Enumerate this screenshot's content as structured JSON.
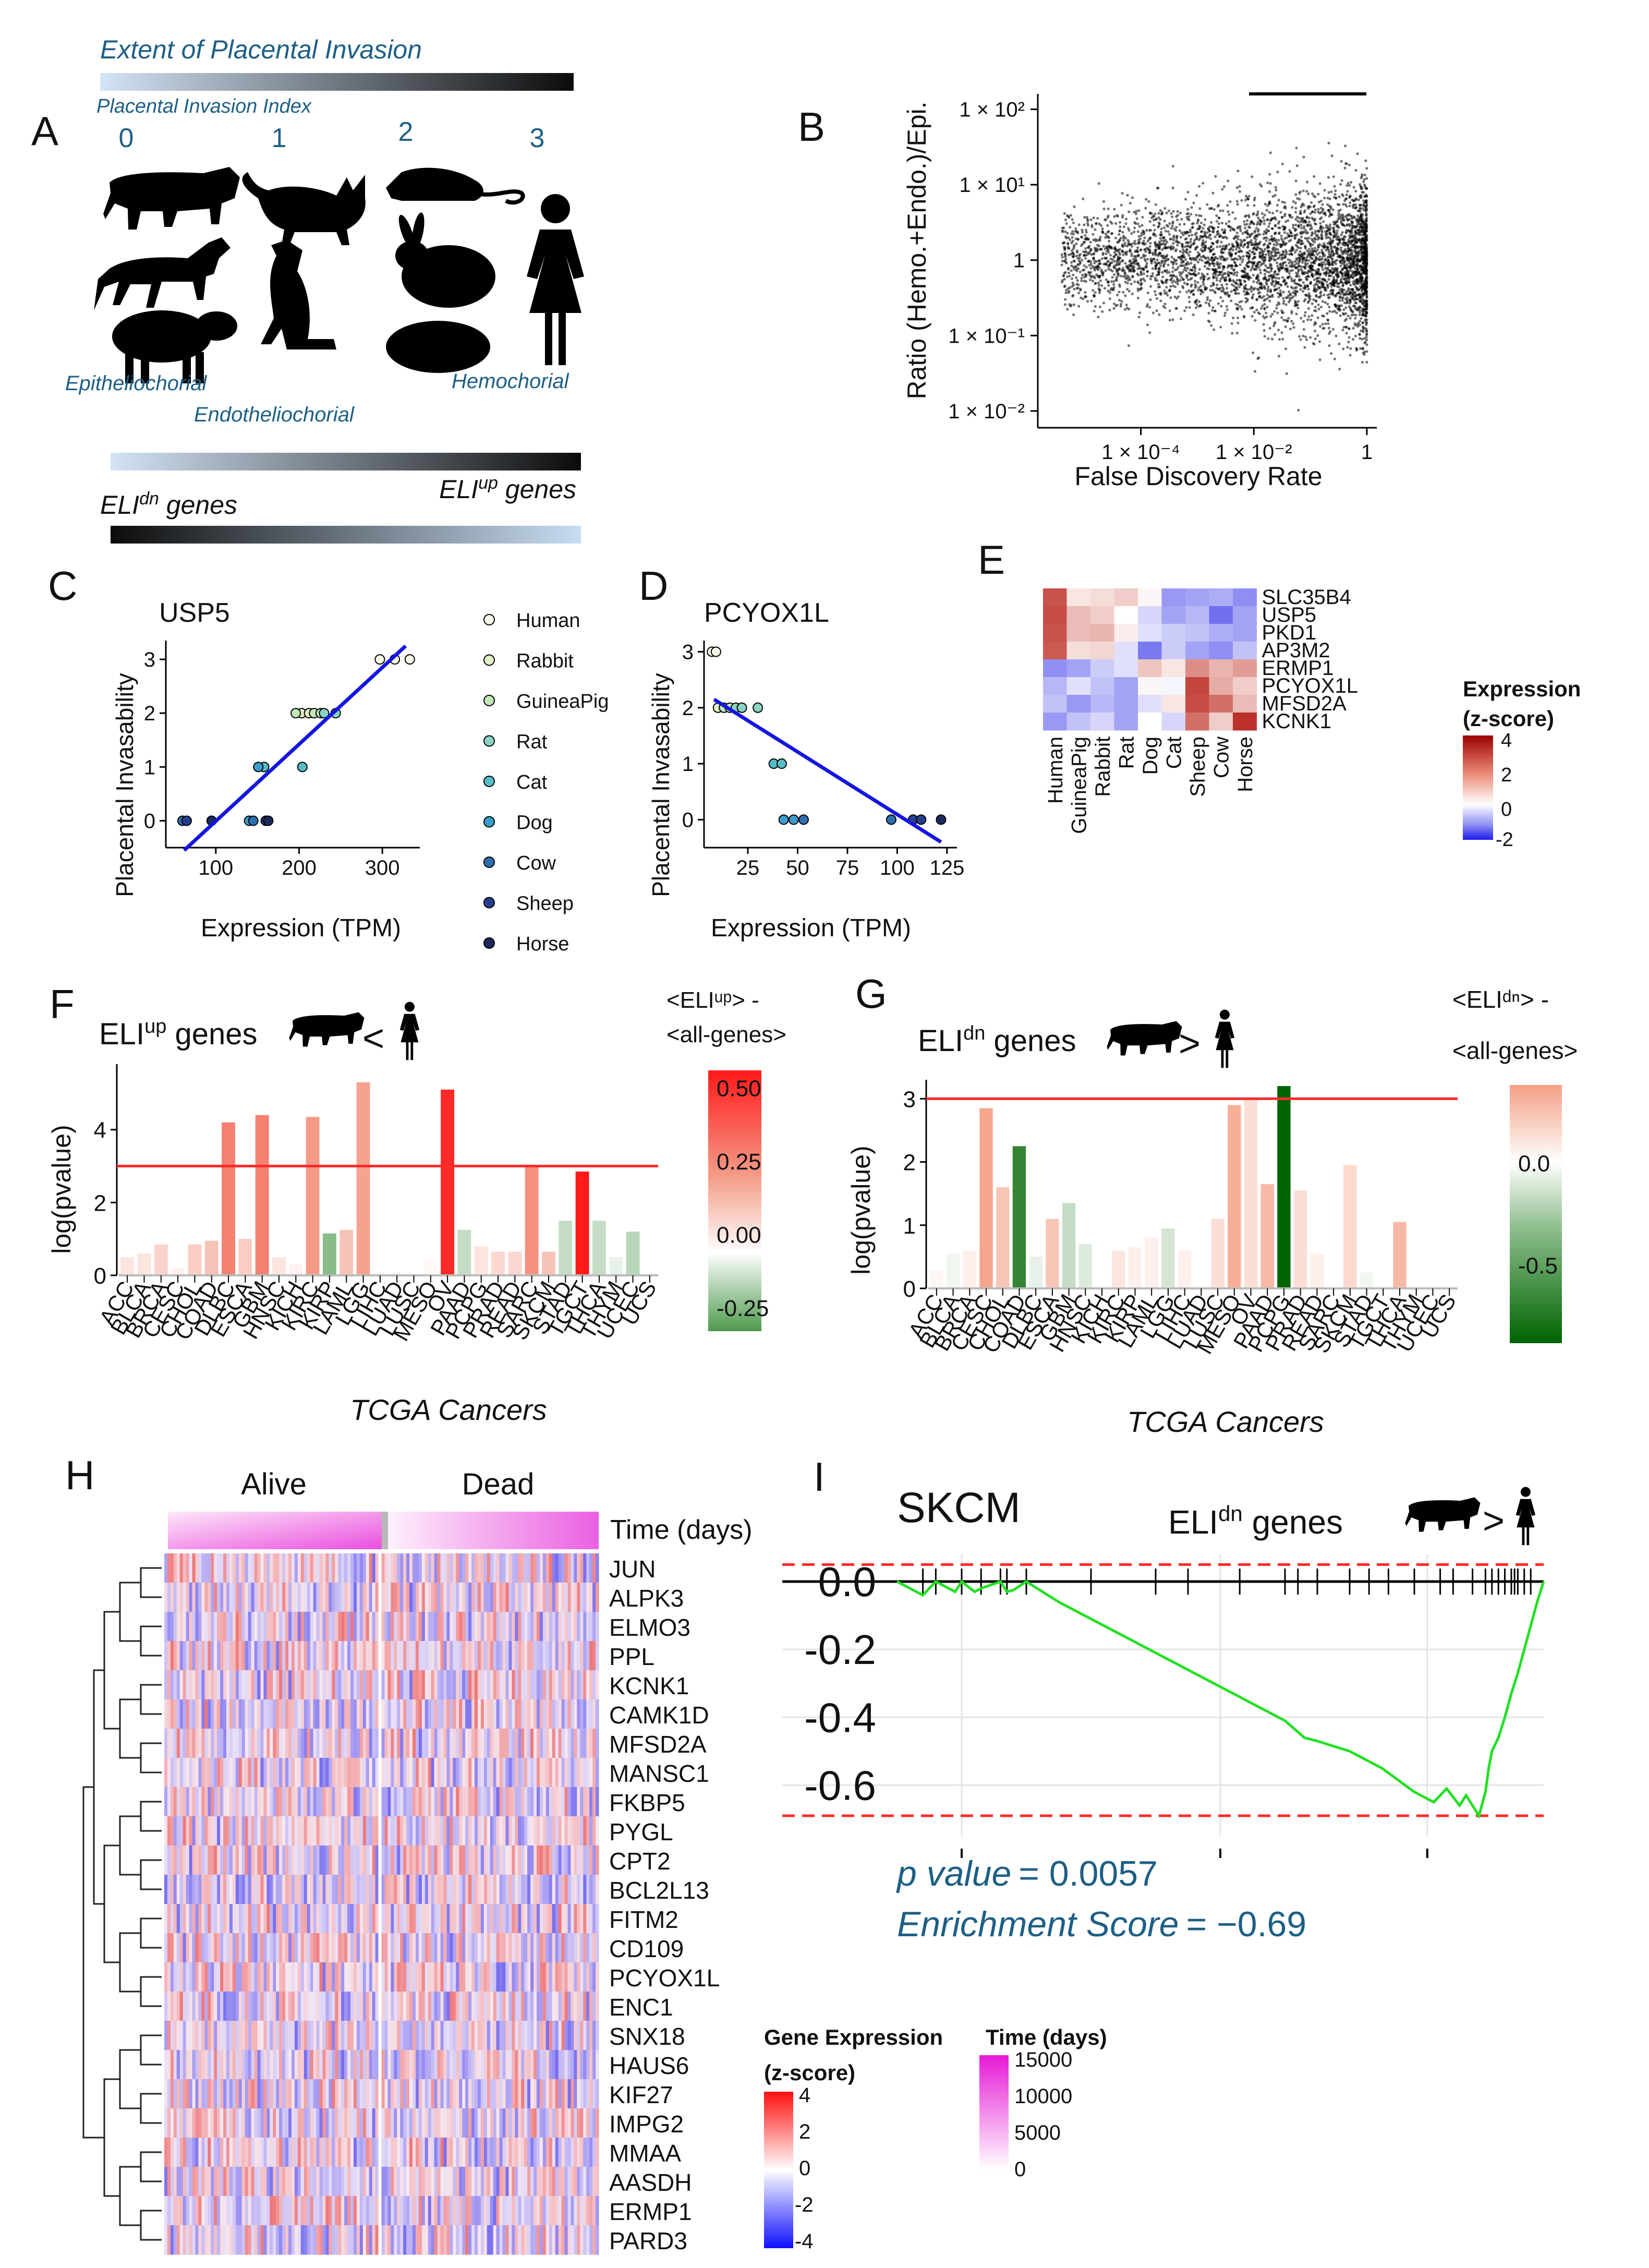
{
  "panelA": {
    "letter": "A",
    "extent_title": "Extent of Placental Invasion",
    "index_label": "Placental Invasion Index",
    "index_values": [
      "0",
      "1",
      "2",
      "3"
    ],
    "animals": [
      "cow",
      "horse",
      "sheep",
      "cat",
      "dog",
      "rat",
      "rabbit",
      "guinea-pig",
      "human"
    ],
    "type_labels": [
      "Epitheliochorial",
      "Endotheliochorial",
      "Hemochorial"
    ],
    "eli_up": "ELI",
    "eli_up_sup": "up",
    "eli_up_suffix": " genes",
    "eli_dn": "ELI",
    "eli_dn_sup": "dn",
    "eli_dn_suffix": " genes"
  },
  "chart_data": [
    {
      "panel": "B",
      "type": "scatter",
      "xlabel": "False Discovery Rate",
      "ylabel": "Ratio (Hemo.+Endo.)/Epi.",
      "xscale": "log",
      "yscale": "log",
      "xlim": [
        1.5e-06,
        1.5
      ],
      "ylim": [
        0.006,
        160
      ],
      "x_ticks": [
        "1 × 10⁻⁴",
        "1 × 10⁻²",
        "1"
      ],
      "y_ticks": [
        "1 × 10²",
        "1 × 10¹",
        "1",
        "1 × 10⁻¹",
        "1 × 10⁻²"
      ]
    },
    {
      "panel": "C",
      "type": "scatter",
      "title": "USP5",
      "xlabel": "Expression (TPM)",
      "ylabel": "Placental Invasability",
      "xlim": [
        40,
        345
      ],
      "ylim": [
        -0.5,
        3.35
      ],
      "x_ticks": [
        100,
        200,
        300
      ],
      "y_ticks": [
        0,
        1,
        2,
        3
      ],
      "points": [
        {
          "species": "Human",
          "x": 297,
          "y": 3
        },
        {
          "species": "Human",
          "x": 315,
          "y": 3
        },
        {
          "species": "Human",
          "x": 333,
          "y": 3
        },
        {
          "species": "Rabbit",
          "x": 203,
          "y": 2
        },
        {
          "species": "Rabbit",
          "x": 212,
          "y": 2
        },
        {
          "species": "GuineaPig",
          "x": 196,
          "y": 2
        },
        {
          "species": "GuineaPig",
          "x": 218,
          "y": 2
        },
        {
          "species": "GuineaPig",
          "x": 226,
          "y": 2
        },
        {
          "species": "Rat",
          "x": 230,
          "y": 2
        },
        {
          "species": "Rat",
          "x": 244,
          "y": 2
        },
        {
          "species": "Cat",
          "x": 158,
          "y": 1
        },
        {
          "species": "Cat",
          "x": 204,
          "y": 1
        },
        {
          "species": "Dog",
          "x": 151,
          "y": 1
        },
        {
          "species": "Dog",
          "x": 140,
          "y": 0
        },
        {
          "species": "Cow",
          "x": 60,
          "y": 0
        },
        {
          "species": "Cow",
          "x": 145,
          "y": 0
        },
        {
          "species": "Sheep",
          "x": 65,
          "y": 0
        },
        {
          "species": "Sheep",
          "x": 160,
          "y": 0
        },
        {
          "species": "Horse",
          "x": 95,
          "y": 0
        },
        {
          "species": "Horse",
          "x": 163,
          "y": 0
        }
      ],
      "fit": {
        "x0": 62,
        "y0": -0.55,
        "x1": 328,
        "y1": 3.25
      }
    },
    {
      "panel": "D",
      "type": "scatter",
      "title": "PCYOX1L",
      "xlabel": "Expression (TPM)",
      "ylabel": "Placental Invasability",
      "xlim": [
        3,
        130
      ],
      "ylim": [
        -0.5,
        3.2
      ],
      "x_ticks": [
        25,
        50,
        75,
        100,
        125
      ],
      "y_ticks": [
        0,
        1,
        2,
        3
      ],
      "points": [
        {
          "species": "Human",
          "x": 7,
          "y": 3
        },
        {
          "species": "Human",
          "x": 9,
          "y": 3
        },
        {
          "species": "Rabbit",
          "x": 10,
          "y": 2
        },
        {
          "species": "GuineaPig",
          "x": 13,
          "y": 2
        },
        {
          "species": "GuineaPig",
          "x": 16,
          "y": 2
        },
        {
          "species": "Rat",
          "x": 19,
          "y": 2
        },
        {
          "species": "Rat",
          "x": 22,
          "y": 2
        },
        {
          "species": "Rat",
          "x": 30,
          "y": 2
        },
        {
          "species": "Cat",
          "x": 38,
          "y": 1
        },
        {
          "species": "Cat",
          "x": 42,
          "y": 1
        },
        {
          "species": "Dog",
          "x": 43,
          "y": 0
        },
        {
          "species": "Dog",
          "x": 48,
          "y": 0
        },
        {
          "species": "Cow",
          "x": 53,
          "y": 0
        },
        {
          "species": "Cow",
          "x": 97,
          "y": 0
        },
        {
          "species": "Sheep",
          "x": 108,
          "y": 0
        },
        {
          "species": "Sheep",
          "x": 112,
          "y": 0
        },
        {
          "species": "Horse",
          "x": 122,
          "y": 0
        }
      ],
      "fit": {
        "x0": 8,
        "y0": 2.15,
        "x1": 122,
        "y1": -0.4
      }
    },
    {
      "panel": "E",
      "type": "heatmap",
      "legend_title": [
        "Expression",
        "(z-score)"
      ],
      "legend_ticks": [
        "4",
        "2",
        "0",
        "-2"
      ],
      "rows": [
        "SLC35B4",
        "USP5",
        "PKD1",
        "AP3M2",
        "ERMP1",
        "PCYOX1L",
        "MFSD2A",
        "KCNK1"
      ],
      "cols": [
        "Human",
        "GuineaPig",
        "Rabbit",
        "Rat",
        "Dog",
        "Cat",
        "Sheep",
        "Cow",
        "Horse"
      ],
      "values": [
        [
          2.2,
          0.3,
          0.4,
          0.6,
          0.1,
          -1.0,
          -0.9,
          -0.8,
          -1.1
        ],
        [
          2.3,
          0.8,
          0.6,
          0.0,
          -0.4,
          -0.9,
          -0.7,
          -1.4,
          -0.9
        ],
        [
          2.2,
          0.8,
          0.9,
          0.2,
          -0.3,
          -0.5,
          -0.6,
          -0.8,
          -0.9
        ],
        [
          2.1,
          0.4,
          0.5,
          -0.3,
          -1.3,
          -0.5,
          -0.9,
          -1.1,
          -0.6
        ],
        [
          -1.1,
          -0.9,
          -0.5,
          -0.3,
          0.7,
          0.3,
          1.4,
          0.9,
          1.2
        ],
        [
          -0.7,
          -0.3,
          -0.6,
          -0.9,
          0.1,
          -0.1,
          2.4,
          1.0,
          0.6
        ],
        [
          -0.6,
          -1.0,
          -0.7,
          -0.9,
          -0.3,
          0.3,
          2.3,
          1.8,
          0.8
        ],
        [
          -1.0,
          -0.6,
          -0.4,
          -0.9,
          0.0,
          -0.4,
          1.8,
          0.6,
          2.7
        ]
      ]
    },
    {
      "panel": "F",
      "type": "bar",
      "title_prefix": "ELI",
      "title_sup": "up",
      "title_suffix": " genes",
      "comparison": "<",
      "xlabel": "TCGA Cancers",
      "ylabel": "log(pvalue)",
      "ylim": [
        0,
        5.8
      ],
      "y_ticks": [
        0,
        2,
        4
      ],
      "threshold": 3,
      "legend_title": [
        "<ELIᵘᵖ> -",
        "<all-genes>"
      ],
      "legend_range": [
        -0.33,
        0.56
      ],
      "legend_ticks": [
        0.5,
        0.25,
        0.0,
        -0.25
      ],
      "legend_tick_labels": [
        "0.50",
        "0.25",
        "0.00",
        "-0.25"
      ],
      "categories": [
        "ACC",
        "BLCA",
        "BRCA",
        "CESC",
        "CHOL",
        "COAD",
        "DLBC",
        "ESCA",
        "GBM",
        "HNSC",
        "KICH",
        "KIRC",
        "KIRP",
        "LAML",
        "LGG",
        "LIHC",
        "LUAD",
        "LUSC",
        "MESO",
        "OV",
        "PAAD",
        "PCPG",
        "PRAD",
        "READ",
        "SARC",
        "SKCM",
        "STAD",
        "TGCT",
        "THCA",
        "THYM",
        "UCEC",
        "UCS"
      ],
      "values": [
        0.5,
        0.6,
        0.85,
        0.2,
        0.85,
        0.95,
        4.2,
        1.0,
        4.4,
        0.5,
        0.3,
        4.35,
        1.15,
        1.25,
        5.3,
        0.1,
        0.1,
        0.05,
        0.45,
        5.1,
        1.25,
        0.8,
        0.65,
        0.65,
        3.0,
        0.65,
        1.5,
        2.85,
        1.5,
        0.5,
        1.2,
        0.2
      ],
      "effects": [
        0.08,
        0.08,
        0.13,
        0.04,
        0.15,
        0.18,
        0.35,
        0.15,
        0.35,
        0.08,
        0.04,
        0.3,
        -0.2,
        0.18,
        0.28,
        0.02,
        0.02,
        0.0,
        0.02,
        0.52,
        -0.1,
        0.08,
        0.12,
        0.12,
        0.32,
        0.18,
        -0.1,
        0.56,
        -0.1,
        -0.04,
        -0.12,
        0.0
      ]
    },
    {
      "panel": "G",
      "type": "bar",
      "title_prefix": "ELI",
      "title_sup": "dn",
      "title_suffix": " genes",
      "comparison": ">",
      "xlabel": "TCGA Cancers",
      "ylabel": "log(pvalue)",
      "ylim": [
        0,
        3.3
      ],
      "y_ticks": [
        0,
        1,
        2,
        3
      ],
      "threshold": 3,
      "legend_title": [
        "<ELIᵈⁿ> -",
        "<all-genes>"
      ],
      "legend_range": [
        -0.88,
        0.38
      ],
      "legend_ticks": [
        0.0,
        -0.5
      ],
      "legend_tick_labels": [
        "0.0",
        "-0.5"
      ],
      "categories": [
        "ACC",
        "BLCA",
        "BRCA",
        "CESC",
        "CHOL",
        "COAD",
        "DLBC",
        "ESCA",
        "GBM",
        "HNSC",
        "KICH",
        "KIRC",
        "KIRP",
        "LAML",
        "LGG",
        "LIHC",
        "LUAD",
        "LUSC",
        "MESO",
        "OV",
        "PAAD",
        "PCPG",
        "PRAD",
        "READ",
        "SARC",
        "SKCM",
        "STAD",
        "TGCT",
        "THCA",
        "THYM",
        "UCEC",
        "UCS"
      ],
      "values": [
        0.3,
        0.55,
        0.6,
        2.85,
        1.6,
        2.25,
        0.5,
        1.1,
        1.35,
        0.7,
        0.3,
        0.6,
        0.65,
        0.8,
        0.95,
        0.6,
        0.05,
        1.1,
        2.9,
        3.0,
        1.65,
        3.2,
        1.55,
        0.55,
        0.3,
        1.95,
        0.25,
        0.2,
        1.05,
        0.0,
        0.0,
        0.0
      ],
      "effects": [
        0.03,
        -0.05,
        0.05,
        0.28,
        0.18,
        -0.7,
        -0.08,
        0.18,
        -0.2,
        -0.12,
        0.0,
        0.08,
        0.05,
        0.05,
        -0.15,
        0.05,
        0.0,
        0.1,
        0.25,
        0.1,
        0.22,
        -0.88,
        0.1,
        0.05,
        0.0,
        0.12,
        -0.05,
        0.0,
        0.22,
        0.0,
        0.0,
        0.0
      ]
    },
    {
      "panel": "H",
      "type": "heatmap",
      "col_groups": [
        "Alive",
        "Dead"
      ],
      "annotation_label": "Time (days)",
      "genes": [
        "JUN",
        "ALPK3",
        "ELMO3",
        "PPL",
        "KCNK1",
        "CAMK1D",
        "MFSD2A",
        "MANSC1",
        "FKBP5",
        "PYGL",
        "CPT2",
        "BCL2L13",
        "FITM2",
        "CD109",
        "PCYOX1L",
        "ENC1",
        "SNX18",
        "HAUS6",
        "KIF27",
        "IMPG2",
        "MMAA",
        "AASDH",
        "ERMP1",
        "PARD3"
      ],
      "legend1_title": [
        "Gene Expression",
        "(z-score)"
      ],
      "legend1_ticks": [
        "4",
        "2",
        "0",
        "-2",
        "-4"
      ],
      "legend2_title": "Time (days)",
      "legend2_ticks": [
        "15000",
        "10000",
        "5000",
        "0"
      ]
    },
    {
      "panel": "I",
      "type": "line",
      "title": "SKCM",
      "gene_set_prefix": "ELI",
      "gene_set_sup": "dn",
      "gene_set_suffix": " genes",
      "comparison": ">",
      "ylim": [
        -0.75,
        0.08
      ],
      "y_ticks": [
        0.0,
        -0.2,
        -0.4,
        -0.6
      ],
      "y_tick_labels": [
        "0.0",
        "-0.2",
        "-0.4",
        "-0.6"
      ],
      "x": [
        0.0,
        0.04,
        0.06,
        0.09,
        0.1,
        0.12,
        0.13,
        0.16,
        0.17,
        0.18,
        0.2,
        0.25,
        0.3,
        0.35,
        0.4,
        0.45,
        0.5,
        0.55,
        0.6,
        0.63,
        0.65,
        0.7,
        0.75,
        0.8,
        0.83,
        0.85,
        0.87,
        0.88,
        0.9,
        0.91,
        0.915,
        0.92,
        0.93,
        0.94,
        0.95,
        0.96,
        0.97,
        0.98,
        0.99,
        1.0
      ],
      "y": [
        0.0,
        -0.04,
        0.0,
        -0.03,
        0.0,
        -0.03,
        -0.02,
        0.0,
        -0.03,
        -0.025,
        0.0,
        -0.06,
        -0.11,
        -0.16,
        -0.21,
        -0.26,
        -0.31,
        -0.36,
        -0.41,
        -0.46,
        -0.47,
        -0.5,
        -0.55,
        -0.62,
        -0.65,
        -0.61,
        -0.66,
        -0.63,
        -0.69,
        -0.62,
        -0.55,
        -0.5,
        -0.46,
        -0.4,
        -0.33,
        -0.27,
        -0.2,
        -0.13,
        -0.06,
        0.0
      ],
      "hits": [
        0.04,
        0.06,
        0.1,
        0.13,
        0.16,
        0.17,
        0.2,
        0.3,
        0.4,
        0.45,
        0.53,
        0.6,
        0.62,
        0.65,
        0.7,
        0.73,
        0.76,
        0.8,
        0.84,
        0.86,
        0.89,
        0.91,
        0.92,
        0.93,
        0.94,
        0.95,
        0.955,
        0.96,
        0.97,
        0.98
      ],
      "es_line": -0.69,
      "p_label": "p value",
      "p_value": "= 0.0057",
      "es_label": "Enrichment Score",
      "es_value": "= −0.69"
    }
  ],
  "letters": [
    "A",
    "B",
    "C",
    "D",
    "E",
    "F",
    "G",
    "H",
    "I"
  ],
  "legendC": {
    "species": [
      "Human",
      "Rabbit",
      "GuineaPig",
      "Rat",
      "Cat",
      "Dog",
      "Cow",
      "Sheep",
      "Horse"
    ],
    "colors": [
      "#f7fbe8",
      "#e1f0c4",
      "#c2e6b8",
      "#8ad3c2",
      "#56bdc8",
      "#3a9ecd",
      "#2d6fb0",
      "#253f90",
      "#1b2a5c"
    ]
  },
  "colors": {
    "red": "#ff2a2a",
    "blue": "#1515e0",
    "green_line": "#22e022",
    "text_blue": "#1d5f85"
  }
}
